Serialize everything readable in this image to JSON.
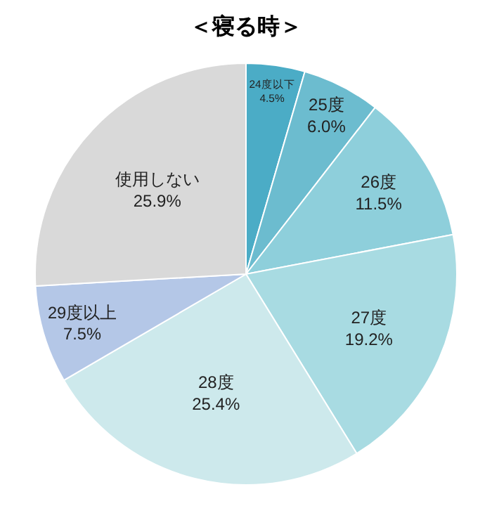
{
  "chart_data": {
    "type": "pie",
    "title": "＜寝る時＞",
    "categories": [
      "24度以下",
      "25度",
      "26度",
      "27度",
      "28度",
      "29度以上",
      "使用しない"
    ],
    "values": [
      4.5,
      6.0,
      11.5,
      19.2,
      25.4,
      7.5,
      25.9
    ],
    "value_labels": [
      "4.5%",
      "6.0%",
      "11.5%",
      "19.2%",
      "25.4%",
      "7.5%",
      "25.9%"
    ],
    "colors": [
      "#4bacc6",
      "#6cbccf",
      "#8ecfdb",
      "#a8dbe2",
      "#cde9ec",
      "#b4c7e7",
      "#d9d9d9"
    ],
    "legend": false
  }
}
